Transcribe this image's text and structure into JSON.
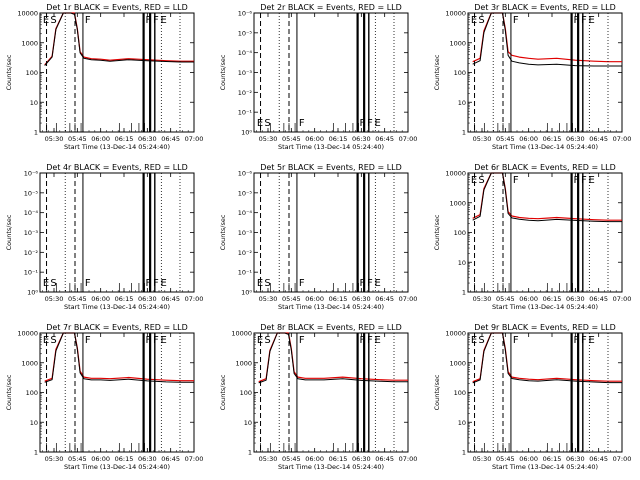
{
  "figure": {
    "background": "#ffffff",
    "series_colors": {
      "events": "#000000",
      "lld": "#e00000"
    }
  },
  "chart_data": [
    {
      "type": "line",
      "title": "Det 1r BLACK = Events, RED = LLD",
      "xlabel": "Start Time (13-Dec-14 05:24:40)",
      "ylabel": "Counts/sec",
      "x_tick_labels": [
        "05:30",
        "05:45",
        "06:00",
        "06:15",
        "06:30",
        "06:45",
        "07:00"
      ],
      "y_tick_labels": [
        "1",
        "10",
        "100",
        "1000",
        "10000"
      ],
      "y_scale": "log",
      "ylim": [
        1,
        10000
      ],
      "flags": [
        "E",
        "S",
        "F",
        "F",
        "F",
        "E"
      ],
      "series": [
        {
          "role": "lld",
          "x": [
            5.4,
            5.48,
            5.52,
            5.6,
            5.68,
            5.72,
            5.75,
            5.78,
            5.82,
            5.9,
            6.0,
            6.1,
            6.3,
            6.5,
            6.7,
            6.85,
            7.0
          ],
          "y": [
            180,
            350,
            3000,
            12000,
            12000,
            10000,
            3000,
            500,
            330,
            290,
            280,
            260,
            290,
            270,
            250,
            240,
            240
          ]
        },
        {
          "role": "events",
          "x": [
            5.4,
            5.48,
            5.52,
            5.6,
            5.68,
            5.72,
            5.75,
            5.78,
            5.82,
            5.9,
            6.0,
            6.1,
            6.3,
            6.5,
            6.7,
            6.85,
            7.0
          ],
          "y": [
            170,
            330,
            2800,
            11000,
            11000,
            9000,
            2800,
            460,
            300,
            270,
            260,
            240,
            270,
            250,
            235,
            225,
            225
          ]
        }
      ]
    },
    {
      "type": "line",
      "title": "Det 2r BLACK = Events, RED = LLD",
      "xlabel": "Start Time (13-Dec-14 05:24:40)",
      "ylabel": "Counts/sec",
      "x_tick_labels": [
        "05:30",
        "05:45",
        "06:00",
        "06:15",
        "06:30",
        "06:45",
        "07:00"
      ],
      "y_tick_labels": [
        "10⁰",
        "10⁻¹",
        "10⁻²",
        "10⁻³",
        "10⁻⁴",
        "10⁻⁵",
        "10⁻⁶"
      ],
      "y_scale": "log",
      "flags": [
        "E",
        "S",
        "F",
        "F",
        "F",
        "E"
      ],
      "series": []
    },
    {
      "type": "line",
      "title": "Det 3r BLACK = Events, RED = LLD",
      "xlabel": "Start Time (13-Dec-14 05:24:40)",
      "ylabel": "Counts/sec",
      "x_tick_labels": [
        "05:30",
        "05:45",
        "06:00",
        "06:15",
        "06:30",
        "06:45",
        "07:00"
      ],
      "y_tick_labels": [
        "1",
        "10",
        "100",
        "1000",
        "10000"
      ],
      "y_scale": "log",
      "ylim": [
        1,
        10000
      ],
      "flags": [
        "E",
        "S",
        "F",
        "F",
        "F",
        "E"
      ],
      "series": [
        {
          "role": "lld",
          "x": [
            5.4,
            5.48,
            5.52,
            5.6,
            5.68,
            5.72,
            5.75,
            5.78,
            5.82,
            5.9,
            6.0,
            6.1,
            6.3,
            6.5,
            6.7,
            6.85,
            7.0
          ],
          "y": [
            230,
            300,
            2500,
            13000,
            13000,
            11000,
            3000,
            500,
            380,
            330,
            300,
            280,
            300,
            260,
            240,
            230,
            230
          ]
        },
        {
          "role": "events",
          "x": [
            5.4,
            5.48,
            5.52,
            5.6,
            5.68,
            5.72,
            5.75,
            5.78,
            5.82,
            5.9,
            6.0,
            6.1,
            6.3,
            6.5,
            6.7,
            6.85,
            7.0
          ],
          "y": [
            190,
            250,
            2200,
            12000,
            12000,
            10000,
            2600,
            380,
            240,
            210,
            190,
            180,
            190,
            170,
            165,
            165,
            165
          ]
        }
      ]
    },
    {
      "type": "line",
      "title": "Det 4r BLACK = Events, RED = LLD",
      "xlabel": "Start Time (13-Dec-14 05:24:40)",
      "ylabel": "Counts/sec",
      "x_tick_labels": [
        "05:30",
        "05:45",
        "06:00",
        "06:15",
        "06:30",
        "06:45",
        "07:00"
      ],
      "y_tick_labels": [
        "10⁰",
        "10⁻¹",
        "10⁻²",
        "10⁻³",
        "10⁻⁴",
        "10⁻⁵",
        "10⁻⁶"
      ],
      "y_scale": "log",
      "flags": [
        "E",
        "S",
        "F",
        "F",
        "F",
        "E"
      ],
      "series": []
    },
    {
      "type": "line",
      "title": "Det 5r BLACK = Events, RED = LLD",
      "xlabel": "Start Time (13-Dec-14 05:24:40)",
      "ylabel": "Counts/sec",
      "x_tick_labels": [
        "05:30",
        "05:45",
        "06:00",
        "06:15",
        "06:30",
        "06:45",
        "07:00"
      ],
      "y_tick_labels": [
        "10⁰",
        "10⁻¹",
        "10⁻²",
        "10⁻³",
        "10⁻⁴",
        "10⁻⁵",
        "10⁻⁶"
      ],
      "y_scale": "log",
      "flags": [
        "E",
        "S",
        "F",
        "F",
        "F",
        "E"
      ],
      "series": []
    },
    {
      "type": "line",
      "title": "Det 6r BLACK = Events, RED = LLD",
      "xlabel": "Start Time (13-Dec-14 05:24:40)",
      "ylabel": "Counts/sec",
      "x_tick_labels": [
        "05:30",
        "05:45",
        "06:00",
        "06:15",
        "06:30",
        "06:45",
        "07:00"
      ],
      "y_tick_labels": [
        "1",
        "10",
        "100",
        "1000",
        "10000"
      ],
      "y_scale": "log",
      "ylim": [
        1,
        10000
      ],
      "flags": [
        "E",
        "S",
        "F",
        "F",
        "F",
        "E"
      ],
      "series": [
        {
          "role": "lld",
          "x": [
            5.4,
            5.48,
            5.52,
            5.6,
            5.68,
            5.72,
            5.75,
            5.78,
            5.82,
            5.9,
            6.0,
            6.1,
            6.3,
            6.5,
            6.7,
            6.85,
            7.0
          ],
          "y": [
            300,
            400,
            3000,
            13000,
            13000,
            11000,
            3000,
            500,
            360,
            320,
            300,
            290,
            320,
            290,
            270,
            260,
            260
          ]
        },
        {
          "role": "events",
          "x": [
            5.4,
            5.48,
            5.52,
            5.6,
            5.68,
            5.72,
            5.75,
            5.78,
            5.82,
            5.9,
            6.0,
            6.1,
            6.3,
            6.5,
            6.7,
            6.85,
            7.0
          ],
          "y": [
            260,
            350,
            2700,
            12000,
            12000,
            10000,
            2700,
            440,
            310,
            280,
            260,
            250,
            275,
            255,
            240,
            232,
            232
          ]
        }
      ]
    },
    {
      "type": "line",
      "title": "Det 7r BLACK = Events, RED = LLD",
      "xlabel": "Start Time (13-Dec-14 05:24:40)",
      "ylabel": "Counts/sec",
      "x_tick_labels": [
        "05:30",
        "05:45",
        "06:00",
        "06:15",
        "06:30",
        "06:45",
        "07:00"
      ],
      "y_tick_labels": [
        "1",
        "10",
        "100",
        "1000",
        "10000"
      ],
      "y_scale": "log",
      "ylim": [
        1,
        10000
      ],
      "flags": [
        "E",
        "S",
        "F",
        "F",
        "F",
        "E"
      ],
      "series": [
        {
          "role": "lld",
          "x": [
            5.4,
            5.48,
            5.52,
            5.6,
            5.68,
            5.72,
            5.75,
            5.78,
            5.82,
            5.9,
            6.0,
            6.1,
            6.3,
            6.5,
            6.7,
            6.85,
            7.0
          ],
          "y": [
            240,
            300,
            2800,
            14000,
            14000,
            12000,
            3200,
            520,
            330,
            300,
            300,
            290,
            320,
            280,
            260,
            250,
            250
          ]
        },
        {
          "role": "events",
          "x": [
            5.4,
            5.48,
            5.52,
            5.6,
            5.68,
            5.72,
            5.75,
            5.78,
            5.82,
            5.9,
            6.0,
            6.1,
            6.3,
            6.5,
            6.7,
            6.85,
            7.0
          ],
          "y": [
            220,
            270,
            2500,
            13000,
            13000,
            11000,
            2900,
            460,
            290,
            265,
            265,
            255,
            280,
            245,
            228,
            220,
            220
          ]
        }
      ]
    },
    {
      "type": "line",
      "title": "Det 8r BLACK = Events, RED = LLD",
      "xlabel": "Start Time (13-Dec-14 05:24:40)",
      "ylabel": "Counts/sec",
      "x_tick_labels": [
        "05:30",
        "05:45",
        "06:00",
        "06:15",
        "06:30",
        "06:45",
        "07:00"
      ],
      "y_tick_labels": [
        "1",
        "10",
        "100",
        "1000",
        "10000"
      ],
      "y_scale": "log",
      "ylim": [
        1,
        10000
      ],
      "flags": [
        "E",
        "S",
        "F",
        "F",
        "F",
        "E"
      ],
      "series": [
        {
          "role": "lld",
          "x": [
            5.4,
            5.48,
            5.52,
            5.6,
            5.68,
            5.72,
            5.75,
            5.78,
            5.82,
            5.9,
            6.0,
            6.1,
            6.3,
            6.5,
            6.7,
            6.85,
            7.0
          ],
          "y": [
            230,
            290,
            2600,
            12000,
            12000,
            10000,
            3000,
            500,
            330,
            300,
            300,
            300,
            330,
            290,
            270,
            260,
            260
          ]
        },
        {
          "role": "events",
          "x": [
            5.4,
            5.48,
            5.52,
            5.6,
            5.68,
            5.72,
            5.75,
            5.78,
            5.82,
            5.9,
            6.0,
            6.1,
            6.3,
            6.5,
            6.7,
            6.85,
            7.0
          ],
          "y": [
            210,
            260,
            2400,
            11000,
            11000,
            9000,
            2700,
            440,
            290,
            265,
            265,
            265,
            290,
            255,
            240,
            230,
            230
          ]
        }
      ]
    },
    {
      "type": "line",
      "title": "Det 9r BLACK = Events, RED = LLD",
      "xlabel": "Start Time (13-Dec-14 05:24:40)",
      "ylabel": "Counts/sec",
      "x_tick_labels": [
        "05:30",
        "05:45",
        "06:00",
        "06:15",
        "06:30",
        "06:45",
        "07:00"
      ],
      "y_tick_labels": [
        "1",
        "10",
        "100",
        "1000",
        "10000"
      ],
      "y_scale": "log",
      "ylim": [
        1,
        10000
      ],
      "flags": [
        "E",
        "S",
        "F",
        "F",
        "F",
        "E"
      ],
      "series": [
        {
          "role": "lld",
          "x": [
            5.4,
            5.48,
            5.52,
            5.6,
            5.68,
            5.72,
            5.75,
            5.78,
            5.82,
            5.9,
            6.0,
            6.1,
            6.3,
            6.5,
            6.7,
            6.85,
            7.0
          ],
          "y": [
            230,
            290,
            2600,
            13000,
            13000,
            11000,
            3000,
            500,
            330,
            300,
            280,
            270,
            300,
            270,
            250,
            240,
            240
          ]
        },
        {
          "role": "events",
          "x": [
            5.4,
            5.48,
            5.52,
            5.6,
            5.68,
            5.72,
            5.75,
            5.78,
            5.82,
            5.9,
            6.0,
            6.1,
            6.3,
            6.5,
            6.7,
            6.85,
            7.0
          ],
          "y": [
            210,
            265,
            2400,
            12000,
            12000,
            10000,
            2700,
            440,
            295,
            268,
            250,
            242,
            268,
            242,
            225,
            215,
            215
          ]
        }
      ]
    }
  ]
}
